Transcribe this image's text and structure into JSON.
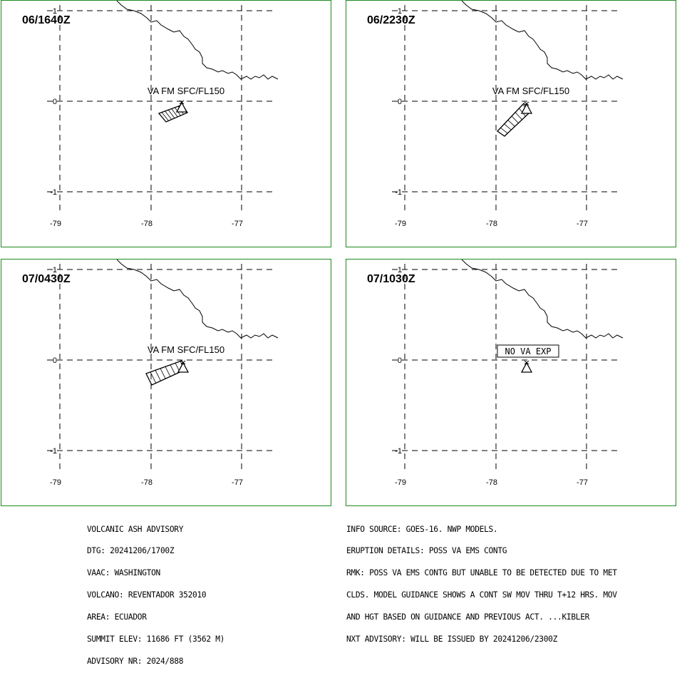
{
  "panels": [
    {
      "time": "06/1640Z",
      "label": "VA FM SFC/FL150",
      "ash": true
    },
    {
      "time": "06/2230Z",
      "label": "VA FM SFC/FL150",
      "ash": true
    },
    {
      "time": "07/0430Z",
      "label": "VA FM SFC/FL150",
      "ash": true
    },
    {
      "time": "07/1030Z",
      "label": "NO VA EXP",
      "ash": false
    }
  ],
  "axes": {
    "lat_labels": [
      "1",
      "0",
      "-1"
    ],
    "lon_labels": [
      "-79",
      "-78",
      "-77"
    ]
  },
  "advisory_left": [
    "VOLCANIC ASH ADVISORY",
    "DTG: 20241206/1700Z",
    "VAAC: WASHINGTON",
    "VOLCANO: REVENTADOR 352010",
    "AREA: ECUADOR",
    "SUMMIT ELEV: 11686 FT (3562 M)",
    "ADVISORY NR: 2024/888"
  ],
  "advisory_right": [
    "INFO SOURCE: GOES-16. NWP MODELS.",
    "ERUPTION DETAILS: POSS VA EMS CONTG",
    "RMK: POSS VA EMS CONTG BUT UNABLE TO BE DETECTED DUE TO MET",
    "CLDS. MODEL GUIDANCE SHOWS A CONT SW MOV THRU T+12 HRS. MOV",
    "AND HGT BASED ON GUIDANCE AND PREVIOUS ACT. ...KIBLER",
    "NXT ADVISORY: WILL BE ISSUED BY 20241206/2300Z"
  ],
  "colors": {
    "frame": "#1f8a1f",
    "ink": "#000000"
  }
}
